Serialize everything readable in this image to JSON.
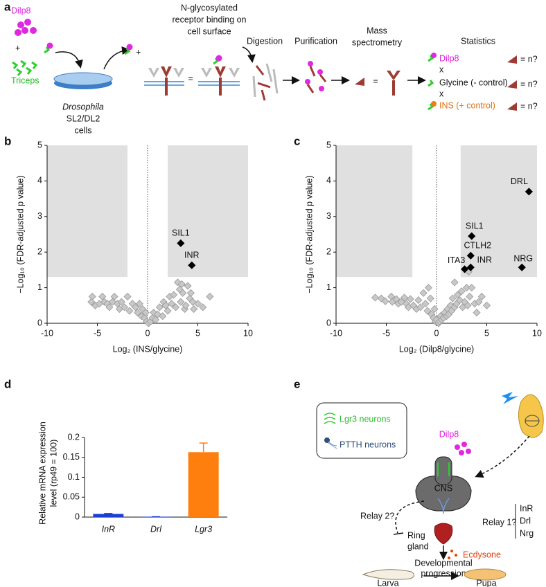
{
  "panel_labels": [
    "a",
    "b",
    "c",
    "d",
    "e"
  ],
  "panel_a": {
    "ligand": "Dilp8",
    "plus": "+",
    "crosslinker": "Triceps",
    "cells": [
      "Drosophila",
      "SL2/DL2",
      "cells"
    ],
    "binding": [
      "N-glycosylated",
      "receptor binding on",
      "cell surface"
    ],
    "equals": "=",
    "steps": [
      "Digestion",
      "Purification",
      "Mass",
      "spectrometry",
      "Statistics"
    ],
    "comparisons": [
      "Dilp8",
      "x",
      "Glycine (- control)",
      "x",
      "INS (+ control)"
    ],
    "counts": [
      "= n?",
      "= n?",
      "= n?"
    ]
  },
  "chart_data": [
    {
      "type": "scatter",
      "xlabel": "Log₂ (INS/glycine)",
      "ylabel": "−Log₁₀ (FDR-adjusted p value)",
      "xlim": [
        -10,
        10
      ],
      "xticks": [
        -10,
        -5,
        0,
        5,
        10
      ],
      "ylim": [
        0,
        5
      ],
      "yticks": [
        0,
        1,
        2,
        3,
        4,
        5
      ],
      "threshold": {
        "x": 2,
        "y": 1.3
      },
      "shade_color": "#e0e0e0",
      "series": [
        {
          "color": "#c8c8c8",
          "x": [
            -5.5,
            -5.6,
            -5.2,
            -4.8,
            -4.5,
            -4.3,
            -4.0,
            -3.8,
            -3.5,
            -3.3,
            -3.0,
            -2.8,
            -2.6,
            -2.3,
            -2.0,
            -1.8,
            -1.5,
            -1.2,
            -1.0,
            -0.8,
            -0.6,
            -0.5,
            -0.3,
            -0.2,
            -0.1,
            0.1,
            0.3,
            0.5,
            0.6,
            0.8,
            1.0,
            1.2,
            1.5,
            1.6,
            1.8,
            2.0,
            2.2,
            2.4,
            2.6,
            2.8,
            3.0,
            3.2,
            3.3,
            3.4,
            3.5,
            3.7,
            3.8,
            4.0,
            4.2,
            4.3,
            4.5,
            4.6,
            5.0,
            5.5,
            6.2
          ],
          "values": [
            0.75,
            0.6,
            0.5,
            0.55,
            0.75,
            0.6,
            0.55,
            0.45,
            0.6,
            0.75,
            0.55,
            0.4,
            0.6,
            0.45,
            0.75,
            0.35,
            0.55,
            0.45,
            0.3,
            0.55,
            0.2,
            0.4,
            0.15,
            0.3,
            0.05,
            0.0,
            0.05,
            0.15,
            0.3,
            0.1,
            0.25,
            0.45,
            0.2,
            0.6,
            0.5,
            0.35,
            0.75,
            0.55,
            0.8,
            0.45,
            1.15,
            0.95,
            0.6,
            1.1,
            0.85,
            0.4,
            0.5,
            1.05,
            0.7,
            0.85,
            0.6,
            0.4,
            0.55,
            0.45,
            0.75
          ]
        },
        {
          "color": "#000000",
          "x": [
            3.3,
            4.4
          ],
          "values": [
            2.25,
            1.63
          ],
          "point_labels": [
            "SIL1",
            "INR"
          ]
        }
      ]
    },
    {
      "type": "scatter",
      "xlabel": "Log₂ (Dilp8/glycine)",
      "ylabel": "−Log₁₀ (FDR-adjusted p value)",
      "xlim": [
        -10,
        10
      ],
      "xticks": [
        -10,
        -5,
        0,
        5,
        10
      ],
      "ylim": [
        0,
        5
      ],
      "yticks": [
        0,
        1,
        2,
        3,
        4,
        5
      ],
      "threshold": {
        "x": 2.4,
        "y": 1.3
      },
      "shade_color": "#e0e0e0",
      "series": [
        {
          "color": "#c8c8c8",
          "x": [
            -6.1,
            -5.5,
            -5.1,
            -4.5,
            -4.4,
            -4.0,
            -3.8,
            -3.5,
            -3.2,
            -3.0,
            -2.8,
            -2.6,
            -2.3,
            -2.0,
            -1.8,
            -1.6,
            -1.3,
            -1.1,
            -0.9,
            -0.8,
            -0.6,
            -0.5,
            -0.3,
            -0.2,
            -0.1,
            0.0,
            0.2,
            0.3,
            0.4,
            0.5,
            0.7,
            0.8,
            1.0,
            1.1,
            1.2,
            1.4,
            1.5,
            1.6,
            1.8,
            2.0,
            2.1,
            2.3,
            2.5,
            2.6,
            2.8,
            3.0,
            3.1,
            3.2,
            3.3,
            3.5,
            3.8,
            4.0,
            4.2,
            4.5,
            5.0,
            1.8
          ],
          "values": [
            0.72,
            0.7,
            0.62,
            0.75,
            0.6,
            0.68,
            0.55,
            0.6,
            0.72,
            0.55,
            0.45,
            0.68,
            0.5,
            0.4,
            0.65,
            0.45,
            0.85,
            0.55,
            0.35,
            1.0,
            0.7,
            0.25,
            0.15,
            0.4,
            0.05,
            0.1,
            0.0,
            0.05,
            0.2,
            0.1,
            0.15,
            0.3,
            0.2,
            0.4,
            0.25,
            0.5,
            0.35,
            0.7,
            0.45,
            0.55,
            0.8,
            0.65,
            0.9,
            0.45,
            0.6,
            1.0,
            0.5,
            1.45,
            0.75,
            1.0,
            0.55,
            0.3,
            0.6,
            0.75,
            0.5,
            1.15
          ]
        },
        {
          "color": "#000000",
          "x": [
            9.2,
            3.5,
            3.4,
            2.8,
            3.4,
            8.5
          ],
          "values": [
            3.7,
            2.45,
            1.9,
            1.52,
            1.57,
            1.57
          ],
          "point_labels": [
            "DRL",
            "SIL1",
            "CTLH2",
            "ITA3",
            "INR",
            "NRG"
          ]
        }
      ]
    },
    {
      "type": "bar",
      "ylabel_lines": [
        "Relative mRNA expression",
        "level (rp49 = 100)"
      ],
      "categories": [
        "InR",
        "Drl",
        "Lgr3"
      ],
      "values": [
        0.008,
        0.001,
        0.163
      ],
      "errors": [
        0.001,
        0,
        0.023
      ],
      "colors": [
        "#1c3fd4",
        "#1c3fd4",
        "#ff7f0e"
      ],
      "ylim": [
        0,
        0.2
      ],
      "yticks": [
        0,
        0.05,
        0.1,
        0.15,
        0.2
      ]
    }
  ],
  "panel_e": {
    "legend": [
      "Lgr3 neurons",
      "PTTH neurons"
    ],
    "signal": "Dilp8",
    "brain": "CNS",
    "relay1": "Relay 1?",
    "receptors": [
      "InR",
      "Drl",
      "Nrg"
    ],
    "relay2": "Relay 2?",
    "gland": [
      "Ring",
      "gland"
    ],
    "hormone": "Ecdysone",
    "outcome": [
      "Developmental",
      "progression"
    ],
    "stages": [
      "Larva",
      "Pupa"
    ]
  }
}
